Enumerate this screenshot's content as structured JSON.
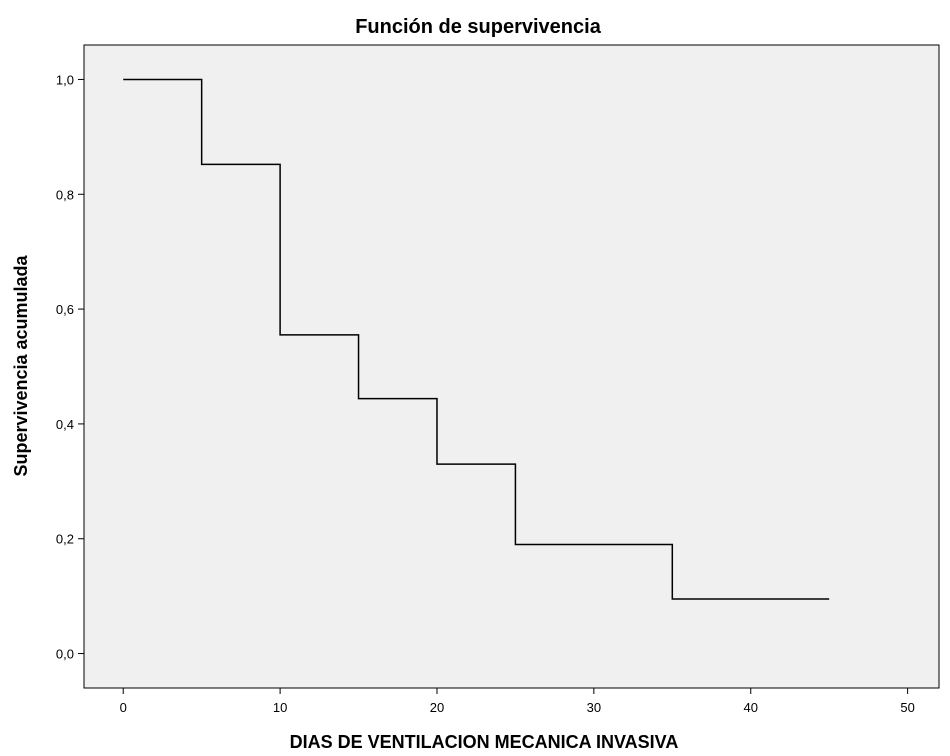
{
  "chart_data": {
    "type": "line",
    "title": "Función de supervivencia",
    "xlabel": "DIAS DE VENTILACION MECANICA INVASIVA",
    "ylabel": "Supervivencia acumulada",
    "xlim": [
      -2.5,
      52
    ],
    "ylim": [
      -0.06,
      1.06
    ],
    "x_ticks": [
      0,
      10,
      20,
      30,
      40,
      50
    ],
    "y_ticks": [
      0.0,
      0.2,
      0.4,
      0.6,
      0.8,
      1.0
    ],
    "x_tick_labels": [
      "0",
      "10",
      "20",
      "30",
      "40",
      "50"
    ],
    "y_tick_labels": [
      "0,0",
      "0,2",
      "0,4",
      "0,6",
      "0,8",
      "1,0"
    ],
    "grid": false,
    "plot_background": "#f0f0f0",
    "line_color": "#000000",
    "series": [
      {
        "step": "post",
        "x": [
          0,
          5,
          10,
          15,
          20,
          25,
          35,
          45
        ],
        "y": [
          1.0,
          0.852,
          0.555,
          0.444,
          0.33,
          0.19,
          0.095,
          0.095
        ]
      }
    ]
  }
}
